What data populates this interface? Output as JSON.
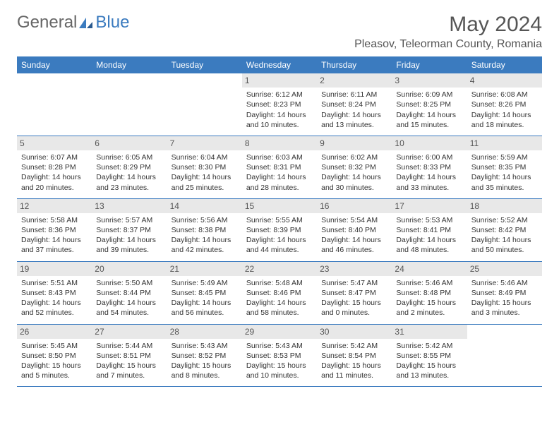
{
  "logo": {
    "text1": "General",
    "text2": "Blue"
  },
  "title": "May 2024",
  "location": "Pleasov, Teleorman County, Romania",
  "colors": {
    "header_bg": "#3b7bbf",
    "header_fg": "#ffffff",
    "daynum_bg": "#e8e8e8",
    "daynum_fg": "#555555",
    "border": "#3b7bbf",
    "text": "#333333",
    "logo_gray": "#666666",
    "logo_blue": "#3b7bbf"
  },
  "day_headers": [
    "Sunday",
    "Monday",
    "Tuesday",
    "Wednesday",
    "Thursday",
    "Friday",
    "Saturday"
  ],
  "weeks": [
    [
      null,
      null,
      null,
      {
        "n": "1",
        "sunrise": "6:12 AM",
        "sunset": "8:23 PM",
        "daylight": "14 hours and 10 minutes."
      },
      {
        "n": "2",
        "sunrise": "6:11 AM",
        "sunset": "8:24 PM",
        "daylight": "14 hours and 13 minutes."
      },
      {
        "n": "3",
        "sunrise": "6:09 AM",
        "sunset": "8:25 PM",
        "daylight": "14 hours and 15 minutes."
      },
      {
        "n": "4",
        "sunrise": "6:08 AM",
        "sunset": "8:26 PM",
        "daylight": "14 hours and 18 minutes."
      }
    ],
    [
      {
        "n": "5",
        "sunrise": "6:07 AM",
        "sunset": "8:28 PM",
        "daylight": "14 hours and 20 minutes."
      },
      {
        "n": "6",
        "sunrise": "6:05 AM",
        "sunset": "8:29 PM",
        "daylight": "14 hours and 23 minutes."
      },
      {
        "n": "7",
        "sunrise": "6:04 AM",
        "sunset": "8:30 PM",
        "daylight": "14 hours and 25 minutes."
      },
      {
        "n": "8",
        "sunrise": "6:03 AM",
        "sunset": "8:31 PM",
        "daylight": "14 hours and 28 minutes."
      },
      {
        "n": "9",
        "sunrise": "6:02 AM",
        "sunset": "8:32 PM",
        "daylight": "14 hours and 30 minutes."
      },
      {
        "n": "10",
        "sunrise": "6:00 AM",
        "sunset": "8:33 PM",
        "daylight": "14 hours and 33 minutes."
      },
      {
        "n": "11",
        "sunrise": "5:59 AM",
        "sunset": "8:35 PM",
        "daylight": "14 hours and 35 minutes."
      }
    ],
    [
      {
        "n": "12",
        "sunrise": "5:58 AM",
        "sunset": "8:36 PM",
        "daylight": "14 hours and 37 minutes."
      },
      {
        "n": "13",
        "sunrise": "5:57 AM",
        "sunset": "8:37 PM",
        "daylight": "14 hours and 39 minutes."
      },
      {
        "n": "14",
        "sunrise": "5:56 AM",
        "sunset": "8:38 PM",
        "daylight": "14 hours and 42 minutes."
      },
      {
        "n": "15",
        "sunrise": "5:55 AM",
        "sunset": "8:39 PM",
        "daylight": "14 hours and 44 minutes."
      },
      {
        "n": "16",
        "sunrise": "5:54 AM",
        "sunset": "8:40 PM",
        "daylight": "14 hours and 46 minutes."
      },
      {
        "n": "17",
        "sunrise": "5:53 AM",
        "sunset": "8:41 PM",
        "daylight": "14 hours and 48 minutes."
      },
      {
        "n": "18",
        "sunrise": "5:52 AM",
        "sunset": "8:42 PM",
        "daylight": "14 hours and 50 minutes."
      }
    ],
    [
      {
        "n": "19",
        "sunrise": "5:51 AM",
        "sunset": "8:43 PM",
        "daylight": "14 hours and 52 minutes."
      },
      {
        "n": "20",
        "sunrise": "5:50 AM",
        "sunset": "8:44 PM",
        "daylight": "14 hours and 54 minutes."
      },
      {
        "n": "21",
        "sunrise": "5:49 AM",
        "sunset": "8:45 PM",
        "daylight": "14 hours and 56 minutes."
      },
      {
        "n": "22",
        "sunrise": "5:48 AM",
        "sunset": "8:46 PM",
        "daylight": "14 hours and 58 minutes."
      },
      {
        "n": "23",
        "sunrise": "5:47 AM",
        "sunset": "8:47 PM",
        "daylight": "15 hours and 0 minutes."
      },
      {
        "n": "24",
        "sunrise": "5:46 AM",
        "sunset": "8:48 PM",
        "daylight": "15 hours and 2 minutes."
      },
      {
        "n": "25",
        "sunrise": "5:46 AM",
        "sunset": "8:49 PM",
        "daylight": "15 hours and 3 minutes."
      }
    ],
    [
      {
        "n": "26",
        "sunrise": "5:45 AM",
        "sunset": "8:50 PM",
        "daylight": "15 hours and 5 minutes."
      },
      {
        "n": "27",
        "sunrise": "5:44 AM",
        "sunset": "8:51 PM",
        "daylight": "15 hours and 7 minutes."
      },
      {
        "n": "28",
        "sunrise": "5:43 AM",
        "sunset": "8:52 PM",
        "daylight": "15 hours and 8 minutes."
      },
      {
        "n": "29",
        "sunrise": "5:43 AM",
        "sunset": "8:53 PM",
        "daylight": "15 hours and 10 minutes."
      },
      {
        "n": "30",
        "sunrise": "5:42 AM",
        "sunset": "8:54 PM",
        "daylight": "15 hours and 11 minutes."
      },
      {
        "n": "31",
        "sunrise": "5:42 AM",
        "sunset": "8:55 PM",
        "daylight": "15 hours and 13 minutes."
      },
      null
    ]
  ],
  "labels": {
    "sunrise": "Sunrise:",
    "sunset": "Sunset:",
    "daylight": "Daylight:"
  }
}
